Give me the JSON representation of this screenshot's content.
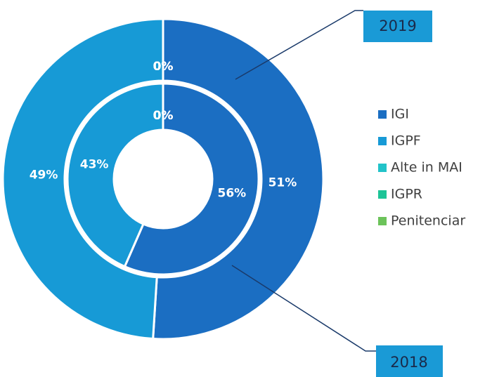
{
  "chart_data": {
    "type": "donut",
    "categories": [
      "IGI",
      "IGPF",
      "Alte in MAI",
      "IGPR",
      "Penitenciar"
    ],
    "colors": [
      "#1b6ec2",
      "#179ad6",
      "#22c3c9",
      "#1dc497",
      "#6cc35a"
    ],
    "series": [
      {
        "name": "2019",
        "values": [
          51,
          49,
          0,
          0,
          0
        ],
        "value_labels": [
          "51%",
          "49%",
          "0%",
          "0%",
          "0%"
        ]
      },
      {
        "name": "2018",
        "values": [
          56,
          43,
          0,
          0,
          0
        ],
        "value_labels": [
          "56%",
          "43%",
          "0%",
          "0%",
          "0%"
        ]
      }
    ],
    "legend": "right"
  }
}
